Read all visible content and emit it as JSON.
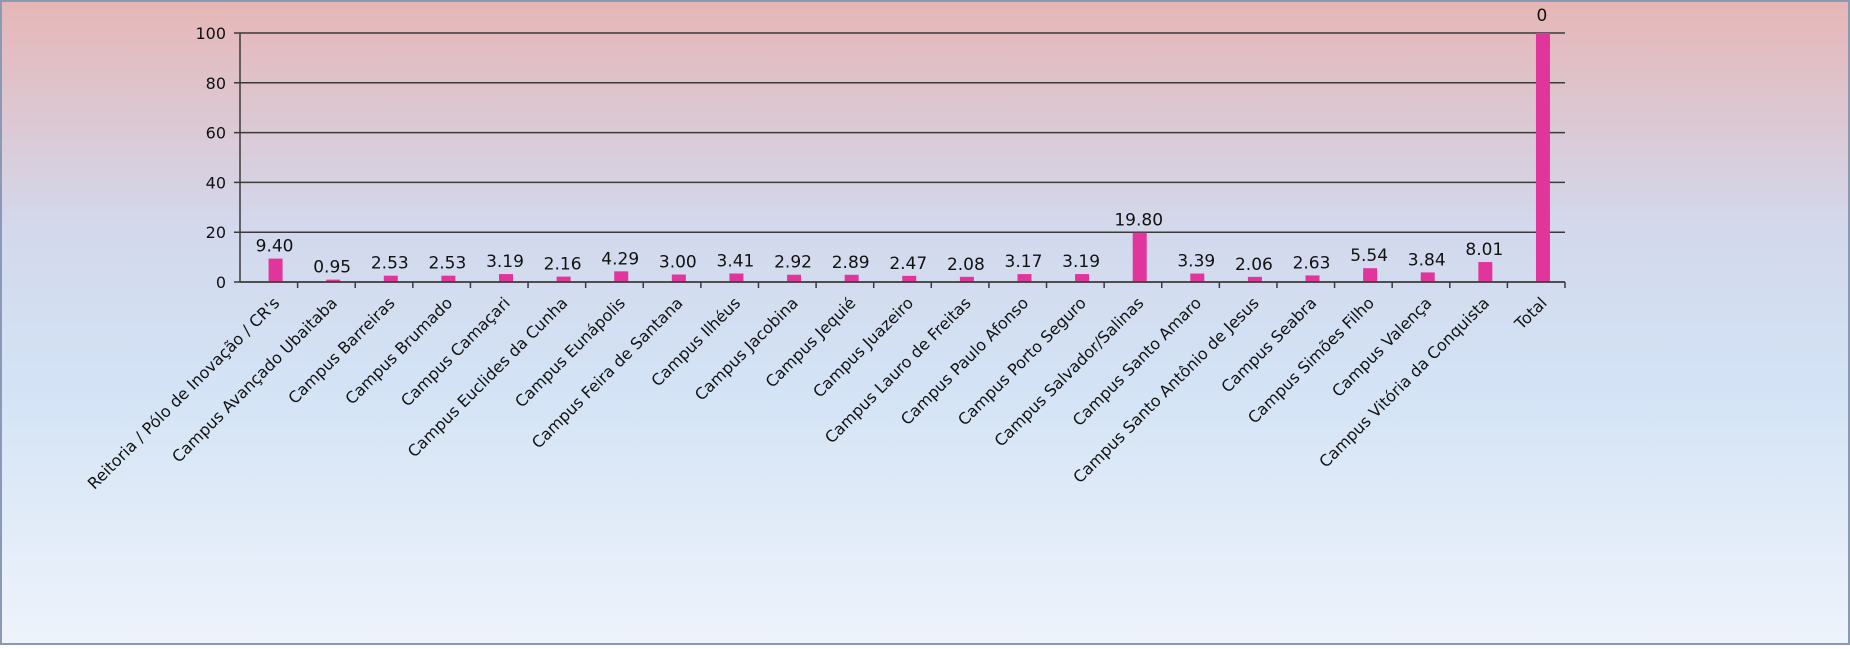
{
  "chart_data": {
    "type": "bar",
    "categories": [
      "Reitoria / Pólo de Inovação / CR's",
      "Campus Avançado Ubaitaba",
      "Campus Barreiras",
      "Campus Brumado",
      "Campus Camaçari",
      "Campus Euclides da Cunha",
      "Campus Eunápolis",
      "Campus Feira de Santana",
      "Campus Ilhéus",
      "Campus Jacobina",
      "Campus Jequié",
      "Campus Juazeiro",
      "Campus Lauro de Freitas",
      "Campus Paulo Afonso",
      "Campus Porto Seguro",
      "Campus Salvador/Salinas",
      "Campus Santo Amaro",
      "Campus Santo Antônio de Jesus",
      "Campus Seabra",
      "Campus Simões Filho",
      "Campus Valença",
      "Campus Vitória da Conquista",
      "Total"
    ],
    "values": [
      9.4,
      0.95,
      2.53,
      2.53,
      3.19,
      2.16,
      4.29,
      3.0,
      3.41,
      2.92,
      2.89,
      2.47,
      2.08,
      3.17,
      3.19,
      19.8,
      3.39,
      2.06,
      2.63,
      5.54,
      3.84,
      8.01,
      100
    ],
    "value_labels": [
      "9.40",
      "0.95",
      "2.53",
      "2.53",
      "3.19",
      "2.16",
      "4.29",
      "3.00",
      "3.41",
      "2.92",
      "2.89",
      "2.47",
      "2.08",
      "3.17",
      "3.19",
      "19.80",
      "3.39",
      "2.06",
      "2.63",
      "5.54",
      "3.84",
      "8.01",
      null
    ],
    "annotations": [
      "0"
    ],
    "color": "#e0359a",
    "ylim": [
      0,
      100
    ],
    "yticks": [
      0,
      20,
      40,
      60,
      80,
      100
    ],
    "grid": true
  }
}
